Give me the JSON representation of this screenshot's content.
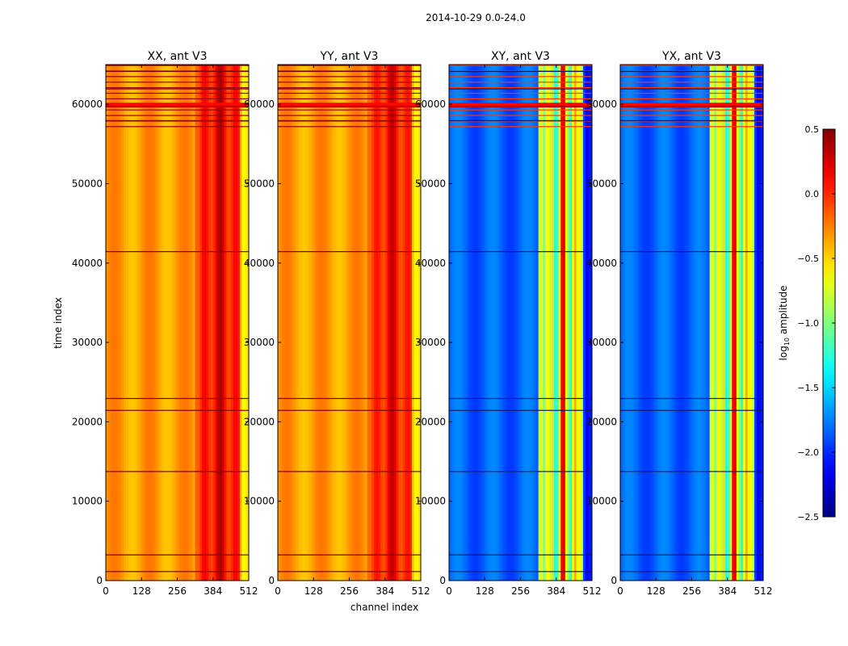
{
  "chart_data": {
    "type": "heatmap",
    "suptitle": "2014-10-29 0.0-24.0",
    "xlabel": "channel index",
    "ylabel": "time index",
    "xlim": [
      0,
      512
    ],
    "ylim": [
      0,
      65000
    ],
    "xticks": [
      0,
      128,
      256,
      384,
      512
    ],
    "yticks": [
      0,
      10000,
      20000,
      30000,
      40000,
      50000,
      60000
    ],
    "panels": [
      {
        "title": "XX, ant V3",
        "level": 0.72,
        "band_boost": 0.2,
        "flag_boost": 0.25
      },
      {
        "title": "YY, ant V3",
        "level": 0.72,
        "band_boost": 0.18,
        "flag_boost": 0.25
      },
      {
        "title": "XY, ant V3",
        "level": 0.22,
        "band_boost": 0.45,
        "flag_boost": 0.6
      },
      {
        "title": "YX, ant V3",
        "level": 0.22,
        "band_boost": 0.45,
        "flag_boost": 0.6
      }
    ],
    "flagged_rows": [
      1200,
      3300,
      13800,
      21500,
      23000,
      41500,
      58000,
      59800,
      62000,
      64200
    ],
    "colorbar": {
      "label": "log10 amplitude",
      "label_base": "log",
      "label_sub": "10",
      "label_rest": " amplitude",
      "range": [
        -2.5,
        0.5
      ],
      "ticks": [
        "0.5",
        "0.0",
        "−0.5",
        "−1.0",
        "−1.5",
        "−2.0",
        "−2.5"
      ],
      "tick_values": [
        0.5,
        0.0,
        -0.5,
        -1.0,
        -1.5,
        -2.0,
        -2.5
      ],
      "colormap": "jet"
    }
  }
}
